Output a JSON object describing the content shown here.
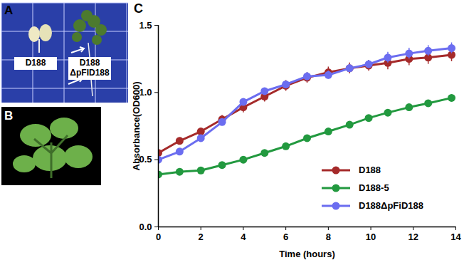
{
  "figure": {
    "panels": [
      {
        "label": "A",
        "captions": [
          "D188",
          "D188 ΔpFID188"
        ]
      },
      {
        "label": "B"
      }
    ]
  },
  "chart_data": {
    "type": "line",
    "title": "C",
    "x_label": "Time (hours)",
    "y_label": "Absorbance(OD600)",
    "x": [
      0,
      1,
      2,
      3,
      4,
      5,
      6,
      7,
      8,
      9,
      9.9,
      10.8,
      11.8,
      12.7,
      13.8
    ],
    "xlim": [
      0,
      14
    ],
    "xticks": [
      0,
      2,
      4,
      6,
      8,
      10,
      12,
      14
    ],
    "ylim": [
      0,
      1.5
    ],
    "yticks": [
      {
        "value": 0,
        "label": "0.0"
      },
      {
        "value": 0.5,
        "label": "0.5"
      },
      {
        "value": 1,
        "label": "1.0"
      },
      {
        "value": 1.5,
        "label": "1.5"
      }
    ],
    "grid": false,
    "legend": "bottom-right",
    "series": [
      {
        "name": "D188",
        "color": "#a52a2a",
        "marker": "circle",
        "line_style": "solid",
        "values": [
          0.55,
          0.64,
          0.71,
          0.8,
          0.89,
          0.97,
          1.05,
          1.11,
          1.15,
          1.18,
          1.2,
          1.22,
          1.25,
          1.26,
          1.28
        ],
        "errors": [
          0.02,
          0.02,
          0.02,
          0.03,
          0.04,
          0.04,
          0.04,
          0.04,
          0.04,
          0.04,
          0.04,
          0.05,
          0.05,
          0.05,
          0.05
        ]
      },
      {
        "name": "D188-5",
        "color": "#22993f",
        "marker": "circle",
        "line_style": "solid",
        "values": [
          0.39,
          0.41,
          0.42,
          0.46,
          0.5,
          0.55,
          0.6,
          0.66,
          0.71,
          0.76,
          0.81,
          0.85,
          0.89,
          0.92,
          0.96
        ],
        "errors": [
          0.01,
          0.01,
          0.01,
          0.01,
          0.01,
          0.01,
          0.01,
          0.01,
          0.01,
          0.01,
          0.01,
          0.01,
          0.01,
          0.01,
          0.01
        ]
      },
      {
        "name": "D188ΔpFiD188",
        "color": "#6b6df0",
        "marker": "circle",
        "line_style": "solid",
        "values": [
          0.5,
          0.56,
          0.66,
          0.78,
          0.93,
          1.01,
          1.06,
          1.12,
          1.13,
          1.18,
          1.21,
          1.26,
          1.29,
          1.31,
          1.33
        ],
        "errors": [
          0.02,
          0.02,
          0.02,
          0.02,
          0.02,
          0.02,
          0.02,
          0.03,
          0.03,
          0.03,
          0.03,
          0.04,
          0.04,
          0.04,
          0.04
        ]
      }
    ]
  }
}
